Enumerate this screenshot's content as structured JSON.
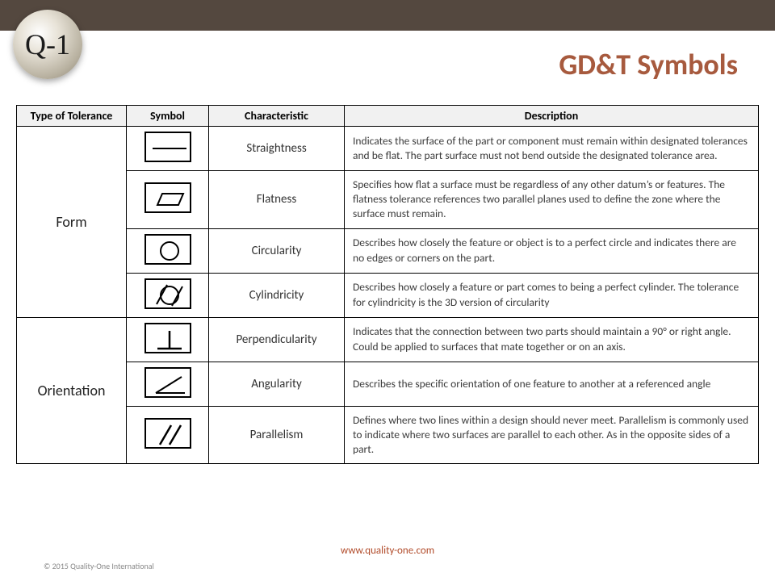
{
  "colors": {
    "topbar": "#54483f",
    "title": "#a75a3e",
    "border": "#000000",
    "header_bg": "#f1f1f1",
    "text": "#3b3b3b",
    "url": "#b14b2a",
    "copyright": "#8a8a8a"
  },
  "logo_text": "Q-1",
  "title": "GD&T Symbols",
  "table": {
    "headers": [
      "Type of Tolerance",
      "Symbol",
      "Characteristic",
      "Description"
    ],
    "groups": [
      {
        "name": "Form",
        "rows": [
          {
            "symbol": "straightness",
            "characteristic": "Straightness",
            "description": "Indicates the surface of the part or component must remain within designated tolerances and be flat. The part surface must not bend outside the designated tolerance area."
          },
          {
            "symbol": "flatness",
            "characteristic": "Flatness",
            "description": "Specifies how flat a surface must be regardless of any other datum’s or features. The flatness tolerance references two parallel planes used to define the zone where the surface must remain."
          },
          {
            "symbol": "circularity",
            "characteristic": "Circularity",
            "description": "Describes how closely the feature or object is to a perfect circle and indicates there are no edges or corners on the part."
          },
          {
            "symbol": "cylindricity",
            "characteristic": "Cylindricity",
            "description": "Describes how closely a feature or part comes to being a perfect cylinder. The tolerance for cylindricity is the 3D version of circularity"
          }
        ]
      },
      {
        "name": "Orientation",
        "rows": [
          {
            "symbol": "perpendicularity",
            "characteristic": "Perpendicularity",
            "description": "Indicates that the connection between two parts should maintain a 90° or right angle. Could be applied to surfaces that mate together or on an axis."
          },
          {
            "symbol": "angularity",
            "characteristic": "Angularity",
            "description": "Describes the specific orientation of one feature to another at a referenced angle"
          },
          {
            "symbol": "parallelism",
            "characteristic": "Parallelism",
            "description": "Defines where two lines within a design should never meet. Parallelism is commonly used to indicate where two surfaces are parallel to each other. As in the opposite sides of a part."
          }
        ]
      }
    ]
  },
  "footer_url": "www.quality-one.com",
  "copyright": "© 2015 Quality-One International"
}
